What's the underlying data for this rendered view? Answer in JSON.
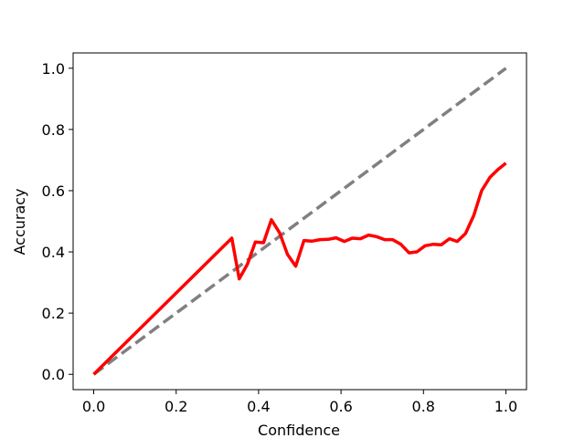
{
  "chart_data": {
    "type": "line",
    "title": "",
    "xlabel": "Confidence",
    "ylabel": "Accuracy",
    "xlim": [
      -0.05,
      1.05
    ],
    "ylim": [
      -0.05,
      1.05
    ],
    "xticks": [
      0.0,
      0.2,
      0.4,
      0.6,
      0.8,
      1.0
    ],
    "xtick_labels": [
      "0.0",
      "0.2",
      "0.4",
      "0.6",
      "0.8",
      "1.0"
    ],
    "yticks": [
      0.0,
      0.2,
      0.4,
      0.6,
      0.8,
      1.0
    ],
    "ytick_labels": [
      "0.0",
      "0.2",
      "0.4",
      "0.6",
      "0.8",
      "1.0"
    ],
    "grid": false,
    "legend": "none",
    "series": [
      {
        "style": "dashed",
        "color": "#808080",
        "x": [
          0.0,
          1.0
        ],
        "y": [
          0.0,
          1.0
        ]
      },
      {
        "style": "solid",
        "color": "#ff0000",
        "x": [
          0.0,
          0.335,
          0.353,
          0.373,
          0.392,
          0.412,
          0.431,
          0.451,
          0.47,
          0.49,
          0.51,
          0.529,
          0.549,
          0.569,
          0.588,
          0.608,
          0.627,
          0.647,
          0.667,
          0.686,
          0.706,
          0.725,
          0.745,
          0.765,
          0.784,
          0.804,
          0.824,
          0.843,
          0.863,
          0.882,
          0.902,
          0.922,
          0.941,
          0.961,
          0.98,
          1.0
        ],
        "y": [
          0.0,
          0.445,
          0.312,
          0.36,
          0.432,
          0.43,
          0.505,
          0.462,
          0.392,
          0.353,
          0.437,
          0.435,
          0.44,
          0.441,
          0.446,
          0.434,
          0.445,
          0.443,
          0.455,
          0.45,
          0.44,
          0.44,
          0.425,
          0.397,
          0.4,
          0.42,
          0.425,
          0.423,
          0.443,
          0.434,
          0.46,
          0.519,
          0.6,
          0.643,
          0.668,
          0.69
        ]
      }
    ]
  }
}
